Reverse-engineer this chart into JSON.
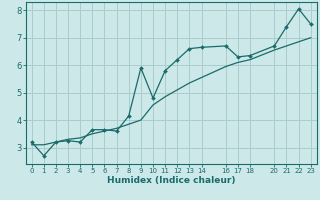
{
  "xlabel": "Humidex (Indice chaleur)",
  "bg_color": "#cce8e8",
  "grid_color": "#aacccc",
  "line_color": "#1a6b6b",
  "xlim": [
    -0.5,
    23.5
  ],
  "ylim": [
    2.4,
    8.3
  ],
  "xticks": [
    0,
    1,
    2,
    3,
    4,
    5,
    6,
    7,
    8,
    9,
    10,
    11,
    12,
    13,
    14,
    16,
    17,
    18,
    20,
    21,
    22,
    23
  ],
  "yticks": [
    3,
    4,
    5,
    6,
    7,
    8
  ],
  "jagged_x": [
    0,
    1,
    2,
    3,
    4,
    5,
    6,
    7,
    8,
    9,
    10,
    11,
    12,
    13,
    14,
    16,
    17,
    18,
    20,
    21,
    22,
    23
  ],
  "jagged_y": [
    3.2,
    2.7,
    3.2,
    3.25,
    3.2,
    3.65,
    3.65,
    3.6,
    4.15,
    5.9,
    4.8,
    5.8,
    6.2,
    6.6,
    6.65,
    6.7,
    6.3,
    6.35,
    6.7,
    7.4,
    8.05,
    7.5
  ],
  "trend_x": [
    0,
    1,
    2,
    3,
    4,
    5,
    6,
    7,
    8,
    9,
    10,
    11,
    12,
    13,
    14,
    16,
    17,
    18,
    20,
    21,
    22,
    23
  ],
  "trend_y": [
    3.1,
    3.1,
    3.2,
    3.3,
    3.35,
    3.5,
    3.6,
    3.7,
    3.85,
    4.0,
    4.55,
    4.85,
    5.1,
    5.35,
    5.55,
    5.95,
    6.1,
    6.2,
    6.55,
    6.7,
    6.85,
    7.0
  ]
}
